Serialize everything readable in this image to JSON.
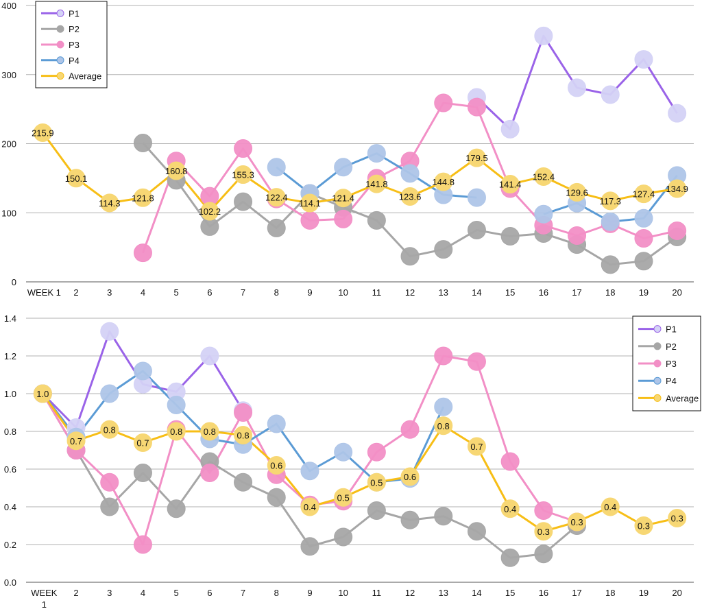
{
  "chart_data": [
    {
      "type": "line",
      "title": "",
      "xlabel": "",
      "ylabel": "",
      "categories": [
        "WEEK 1",
        "2",
        "3",
        "4",
        "5",
        "6",
        "7",
        "8",
        "9",
        "10",
        "11",
        "12",
        "13",
        "14",
        "15",
        "16",
        "17",
        "18",
        "19",
        "20"
      ],
      "ylim": [
        0,
        400
      ],
      "yticks": [
        "0",
        "100",
        "200",
        "300",
        "400"
      ],
      "legend_position": "top-left",
      "series": [
        {
          "name": "P1",
          "color": "#9a63e8",
          "marker_color": "#d4d2f6",
          "values": [
            null,
            null,
            null,
            null,
            null,
            null,
            null,
            null,
            null,
            null,
            null,
            null,
            null,
            267,
            221,
            356,
            281,
            271,
            322,
            244
          ]
        },
        {
          "name": "P2",
          "color": "#a6a6a6",
          "marker_color": "#a6a6a6",
          "values": [
            null,
            null,
            null,
            201,
            147,
            80,
            116,
            78,
            128,
            108,
            89,
            37,
            47,
            75,
            66,
            70,
            54,
            25,
            30,
            65
          ]
        },
        {
          "name": "P3",
          "color": "#f28fc6",
          "marker_color": "#f28fc6",
          "values": [
            null,
            null,
            null,
            42,
            175,
            124,
            193,
            120,
            89,
            91,
            150,
            175,
            259,
            253,
            135,
            82,
            67,
            84,
            63,
            74
          ]
        },
        {
          "name": "P4",
          "color": "#5b9bd5",
          "marker_color": "#aec5e8",
          "values": [
            null,
            null,
            null,
            null,
            null,
            null,
            null,
            166,
            128,
            166,
            186,
            157,
            126,
            122,
            null,
            98,
            114,
            87,
            92,
            154
          ]
        },
        {
          "name": "Average",
          "color": "#f7be16",
          "marker_color": "#f7d774",
          "values": [
            215.9,
            150.1,
            114.3,
            121.8,
            160.8,
            102.2,
            155.3,
            122.4,
            114.1,
            121.4,
            141.8,
            123.6,
            144.8,
            179.5,
            141.4,
            152.4,
            129.6,
            117.3,
            127.4,
            134.9
          ],
          "labels": [
            "215.9",
            "150.1",
            "114.3",
            "121.8",
            "160.8",
            "102.2",
            "155.3",
            "122.4",
            "114.1",
            "121.4",
            "141.8",
            "123.6",
            "144.8",
            "179.5",
            "141.4",
            "152.4",
            "129.6",
            "117.3",
            "127.4",
            "134.9"
          ]
        }
      ]
    },
    {
      "type": "line",
      "title": "",
      "xlabel": "",
      "ylabel": "",
      "categories": [
        "WEEK 1",
        "2",
        "3",
        "4",
        "5",
        "6",
        "7",
        "8",
        "9",
        "10",
        "11",
        "12",
        "13",
        "14",
        "15",
        "16",
        "17",
        "18",
        "19",
        "20"
      ],
      "ylim": [
        0,
        1.4
      ],
      "yticks": [
        "0.0",
        "0.2",
        "0.4",
        "0.6",
        "0.8",
        "1.0",
        "1.2",
        "1.4"
      ],
      "legend_position": "top-right",
      "series": [
        {
          "name": "P1",
          "color": "#9a63e8",
          "marker_color": "#d4d2f6",
          "values": [
            1.0,
            0.82,
            1.33,
            1.05,
            1.01,
            1.2,
            0.91,
            null,
            null,
            null,
            null,
            null,
            null,
            null,
            null,
            null,
            null,
            null,
            null,
            null
          ]
        },
        {
          "name": "P2",
          "color": "#a6a6a6",
          "marker_color": "#a6a6a6",
          "values": [
            1.0,
            0.7,
            0.4,
            0.58,
            0.39,
            0.64,
            0.53,
            0.45,
            0.19,
            0.24,
            0.38,
            0.33,
            0.35,
            0.27,
            0.13,
            0.15,
            0.3,
            null,
            null,
            null
          ]
        },
        {
          "name": "P3",
          "color": "#f28fc6",
          "marker_color": "#f28fc6",
          "values": [
            1.0,
            0.7,
            0.53,
            0.2,
            0.81,
            0.58,
            0.9,
            0.57,
            0.41,
            0.43,
            0.69,
            0.81,
            1.2,
            1.17,
            0.64,
            0.38,
            0.32,
            null,
            null,
            null
          ]
        },
        {
          "name": "P4",
          "color": "#5b9bd5",
          "marker_color": "#aec5e8",
          "values": [
            1.0,
            0.77,
            1.0,
            1.12,
            0.94,
            0.76,
            0.73,
            0.84,
            0.59,
            0.69,
            0.53,
            0.55,
            0.93,
            null,
            null,
            null,
            null,
            null,
            null,
            null
          ]
        },
        {
          "name": "Average",
          "color": "#f7be16",
          "marker_color": "#f7d774",
          "values": [
            1.0,
            0.75,
            0.81,
            0.74,
            0.8,
            0.8,
            0.78,
            0.62,
            0.4,
            0.45,
            0.53,
            0.56,
            0.83,
            0.72,
            0.39,
            0.27,
            0.32,
            0.4,
            0.3,
            0.34
          ],
          "labels": [
            "1.0",
            "0.7",
            "0.8",
            "0.7",
            "0.8",
            "0.8",
            "0.8",
            "0.6",
            "0.4",
            "0.5",
            "0.5",
            "0.6",
            "0.8",
            "0.7",
            "0.4",
            "0.3",
            "0.3",
            "0.4",
            "0.3",
            "0.3"
          ]
        }
      ]
    }
  ]
}
